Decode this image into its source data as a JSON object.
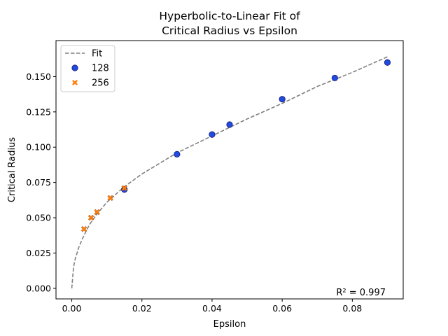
{
  "chart_data": {
    "type": "scatter",
    "title_lines": [
      "Hyperbolic-to-Linear Fit of",
      "Critical Radius vs Epsilon"
    ],
    "xlabel": "Epsilon",
    "ylabel": "Critical Radius",
    "xlim": [
      -0.0045,
      0.0945
    ],
    "ylim": [
      -0.0075,
      0.1755
    ],
    "xticks": [
      0.0,
      0.02,
      0.04,
      0.06,
      0.08
    ],
    "xtick_labels": [
      "0.00",
      "0.02",
      "0.04",
      "0.06",
      "0.08"
    ],
    "yticks": [
      0.0,
      0.025,
      0.05,
      0.075,
      0.1,
      0.125,
      0.15
    ],
    "ytick_labels": [
      "0.000",
      "0.025",
      "0.050",
      "0.075",
      "0.100",
      "0.125",
      "0.150"
    ],
    "grid": false,
    "legend_position": "upper-left",
    "fit": {
      "name": "Fit",
      "color": "#808080",
      "x": [
        0.0,
        0.0005,
        0.001,
        0.002,
        0.003,
        0.004,
        0.005,
        0.007,
        0.01,
        0.015,
        0.02,
        0.03,
        0.04,
        0.05,
        0.06,
        0.07,
        0.08,
        0.09
      ],
      "y": [
        0.0,
        0.015,
        0.021,
        0.029,
        0.035,
        0.04,
        0.045,
        0.052,
        0.061,
        0.072,
        0.081,
        0.096,
        0.108,
        0.12,
        0.131,
        0.143,
        0.153,
        0.164
      ]
    },
    "series": [
      {
        "name": "128",
        "marker": "circle",
        "color": "#1f4be0",
        "x": [
          0.015,
          0.03,
          0.04,
          0.045,
          0.06,
          0.075,
          0.09
        ],
        "y": [
          0.07,
          0.095,
          0.109,
          0.116,
          0.134,
          0.149,
          0.16
        ]
      },
      {
        "name": "256",
        "marker": "x",
        "color": "#ff7f0e",
        "x": [
          0.0035,
          0.0055,
          0.0072,
          0.011,
          0.015
        ],
        "y": [
          0.042,
          0.05,
          0.054,
          0.064,
          0.071
        ]
      }
    ],
    "annotation": "R² = 0.997"
  }
}
